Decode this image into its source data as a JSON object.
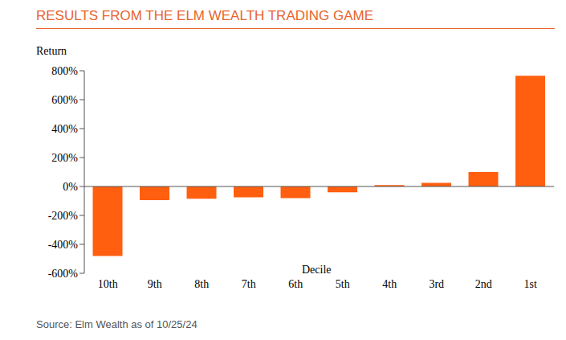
{
  "chart_data": {
    "type": "bar",
    "title": "RESULTS FROM THE ELM WEALTH TRADING GAME",
    "y_label": "Return",
    "x_label": "Decile",
    "source": "Source: Elm Wealth as of 10/25/24",
    "categories": [
      "10th",
      "9th",
      "8th",
      "7th",
      "6th",
      "5th",
      "4th",
      "3rd",
      "2nd",
      "1st"
    ],
    "values": [
      -480,
      -95,
      -85,
      -75,
      -80,
      -40,
      10,
      25,
      100,
      765
    ],
    "color": "#ff5f0f",
    "ylim": [
      -600,
      800
    ],
    "yticks": [
      {
        "value": -600,
        "label": "-600%"
      },
      {
        "value": -400,
        "label": "-400%"
      },
      {
        "value": -200,
        "label": "-200%"
      },
      {
        "value": 0,
        "label": "0%"
      },
      {
        "value": 200,
        "label": "200%"
      },
      {
        "value": 400,
        "label": "400%"
      },
      {
        "value": 600,
        "label": "600%"
      },
      {
        "value": 800,
        "label": "800%"
      }
    ],
    "grid": false
  }
}
